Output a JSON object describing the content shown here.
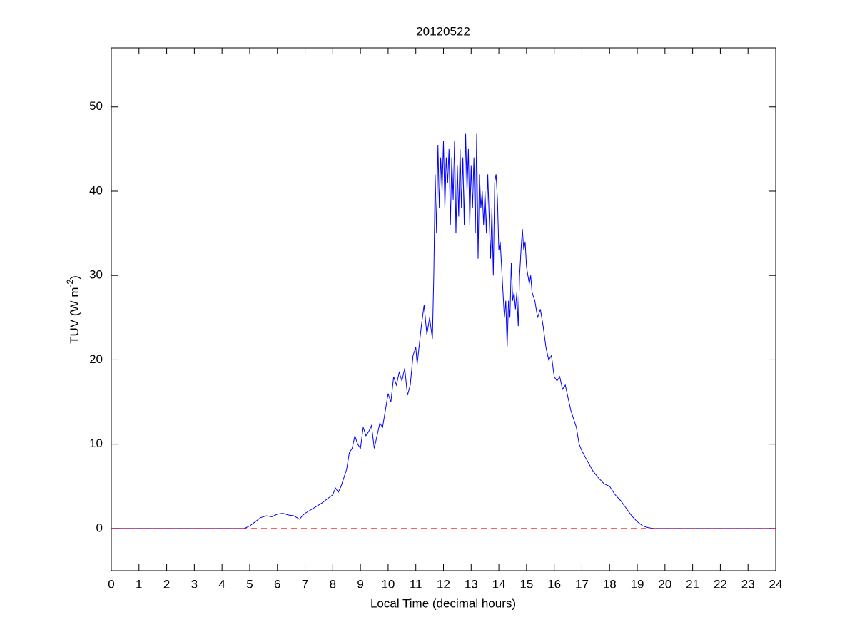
{
  "chart_data": {
    "type": "line",
    "title": "20120522",
    "x_label": "Local Time (decimal hours)",
    "y_label": {
      "main": "TUV (W m",
      "sup": "-2",
      "end": ")"
    },
    "xlim": [
      0,
      24
    ],
    "xticks": [
      0,
      1,
      2,
      3,
      4,
      5,
      6,
      7,
      8,
      9,
      10,
      11,
      12,
      13,
      14,
      15,
      16,
      17,
      18,
      19,
      20,
      21,
      22,
      23,
      24
    ],
    "ylim": [
      -5,
      57
    ],
    "yticks": [
      0,
      10,
      20,
      30,
      40,
      50
    ],
    "grid": false,
    "series": [
      {
        "color": "#0000ff",
        "dash": false,
        "x": [
          0,
          4.8,
          5.0,
          5.2,
          5.4,
          5.6,
          5.8,
          6.0,
          6.2,
          6.4,
          6.6,
          6.8,
          6.9,
          7.0,
          7.2,
          7.4,
          7.6,
          7.8,
          8.0,
          8.1,
          8.2,
          8.3,
          8.4,
          8.5,
          8.6,
          8.7,
          8.8,
          8.9,
          9.0,
          9.1,
          9.2,
          9.3,
          9.4,
          9.5,
          9.6,
          9.7,
          9.8,
          9.9,
          10.0,
          10.1,
          10.2,
          10.3,
          10.4,
          10.5,
          10.6,
          10.7,
          10.8,
          10.9,
          11.0,
          11.05,
          11.2,
          11.3,
          11.4,
          11.5,
          11.6,
          11.65,
          11.7,
          11.75,
          11.8,
          11.85,
          11.9,
          11.95,
          12.0,
          12.05,
          12.1,
          12.15,
          12.2,
          12.25,
          12.3,
          12.35,
          12.4,
          12.45,
          12.5,
          12.55,
          12.6,
          12.65,
          12.7,
          12.75,
          12.8,
          12.85,
          12.9,
          12.95,
          13.0,
          13.05,
          13.1,
          13.15,
          13.2,
          13.25,
          13.3,
          13.35,
          13.4,
          13.45,
          13.5,
          13.55,
          13.6,
          13.65,
          13.7,
          13.75,
          13.8,
          13.85,
          13.9,
          13.95,
          14.0,
          14.05,
          14.1,
          14.15,
          14.2,
          14.25,
          14.3,
          14.35,
          14.4,
          14.45,
          14.5,
          14.55,
          14.6,
          14.65,
          14.7,
          14.75,
          14.8,
          14.85,
          14.9,
          14.95,
          15.0,
          15.05,
          15.1,
          15.15,
          15.2,
          15.3,
          15.4,
          15.5,
          15.6,
          15.7,
          15.8,
          15.9,
          16.0,
          16.1,
          16.2,
          16.3,
          16.4,
          16.5,
          16.6,
          16.7,
          16.8,
          16.9,
          17.0,
          17.2,
          17.4,
          17.6,
          17.8,
          18.0,
          18.2,
          18.4,
          18.6,
          18.8,
          19.0,
          19.2,
          19.4,
          19.6,
          24
        ],
        "values": [
          0,
          0,
          0.3,
          0.8,
          1.3,
          1.5,
          1.4,
          1.7,
          1.8,
          1.6,
          1.5,
          1.1,
          1.5,
          1.8,
          2.2,
          2.6,
          3.0,
          3.5,
          4.0,
          4.8,
          4.3,
          5.0,
          6.0,
          7.0,
          9.0,
          9.5,
          11.0,
          10.0,
          9.5,
          12.0,
          11.0,
          11.5,
          12.2,
          9.5,
          11.0,
          12.5,
          12.0,
          14.0,
          16.0,
          15.0,
          18.0,
          17.0,
          18.5,
          17.5,
          19.0,
          15.8,
          17.0,
          20.5,
          21.5,
          19.5,
          24.0,
          26.5,
          23.0,
          25.0,
          22.5,
          30,
          42.0,
          35,
          45.5,
          38,
          44,
          40,
          46,
          38,
          44,
          41,
          45,
          36,
          44,
          39,
          46,
          35,
          43,
          37,
          45,
          38,
          44,
          36,
          46.8,
          40,
          45,
          36,
          43,
          38,
          44,
          35,
          46.8,
          32,
          42,
          38,
          40,
          36,
          40,
          35,
          42,
          37,
          32,
          38,
          30,
          41,
          42,
          39,
          33,
          34,
          31,
          28,
          25,
          27,
          21.5,
          27,
          25,
          31.5,
          27,
          28,
          26,
          28,
          24,
          30,
          33,
          35.5,
          33,
          34,
          31,
          30,
          29,
          30,
          28,
          27,
          25,
          26,
          24,
          21.5,
          20,
          20.5,
          18,
          17.5,
          18,
          16.5,
          17,
          15.5,
          14,
          13,
          12,
          10,
          9.2,
          8.0,
          6.8,
          6.0,
          5.3,
          5.0,
          4.0,
          3.3,
          2.4,
          1.5,
          0.8,
          0.3,
          0.1,
          0,
          0
        ]
      },
      {
        "color": "#ff0000",
        "dash": true,
        "x": [
          0,
          24
        ],
        "values": [
          0,
          0
        ]
      }
    ]
  }
}
